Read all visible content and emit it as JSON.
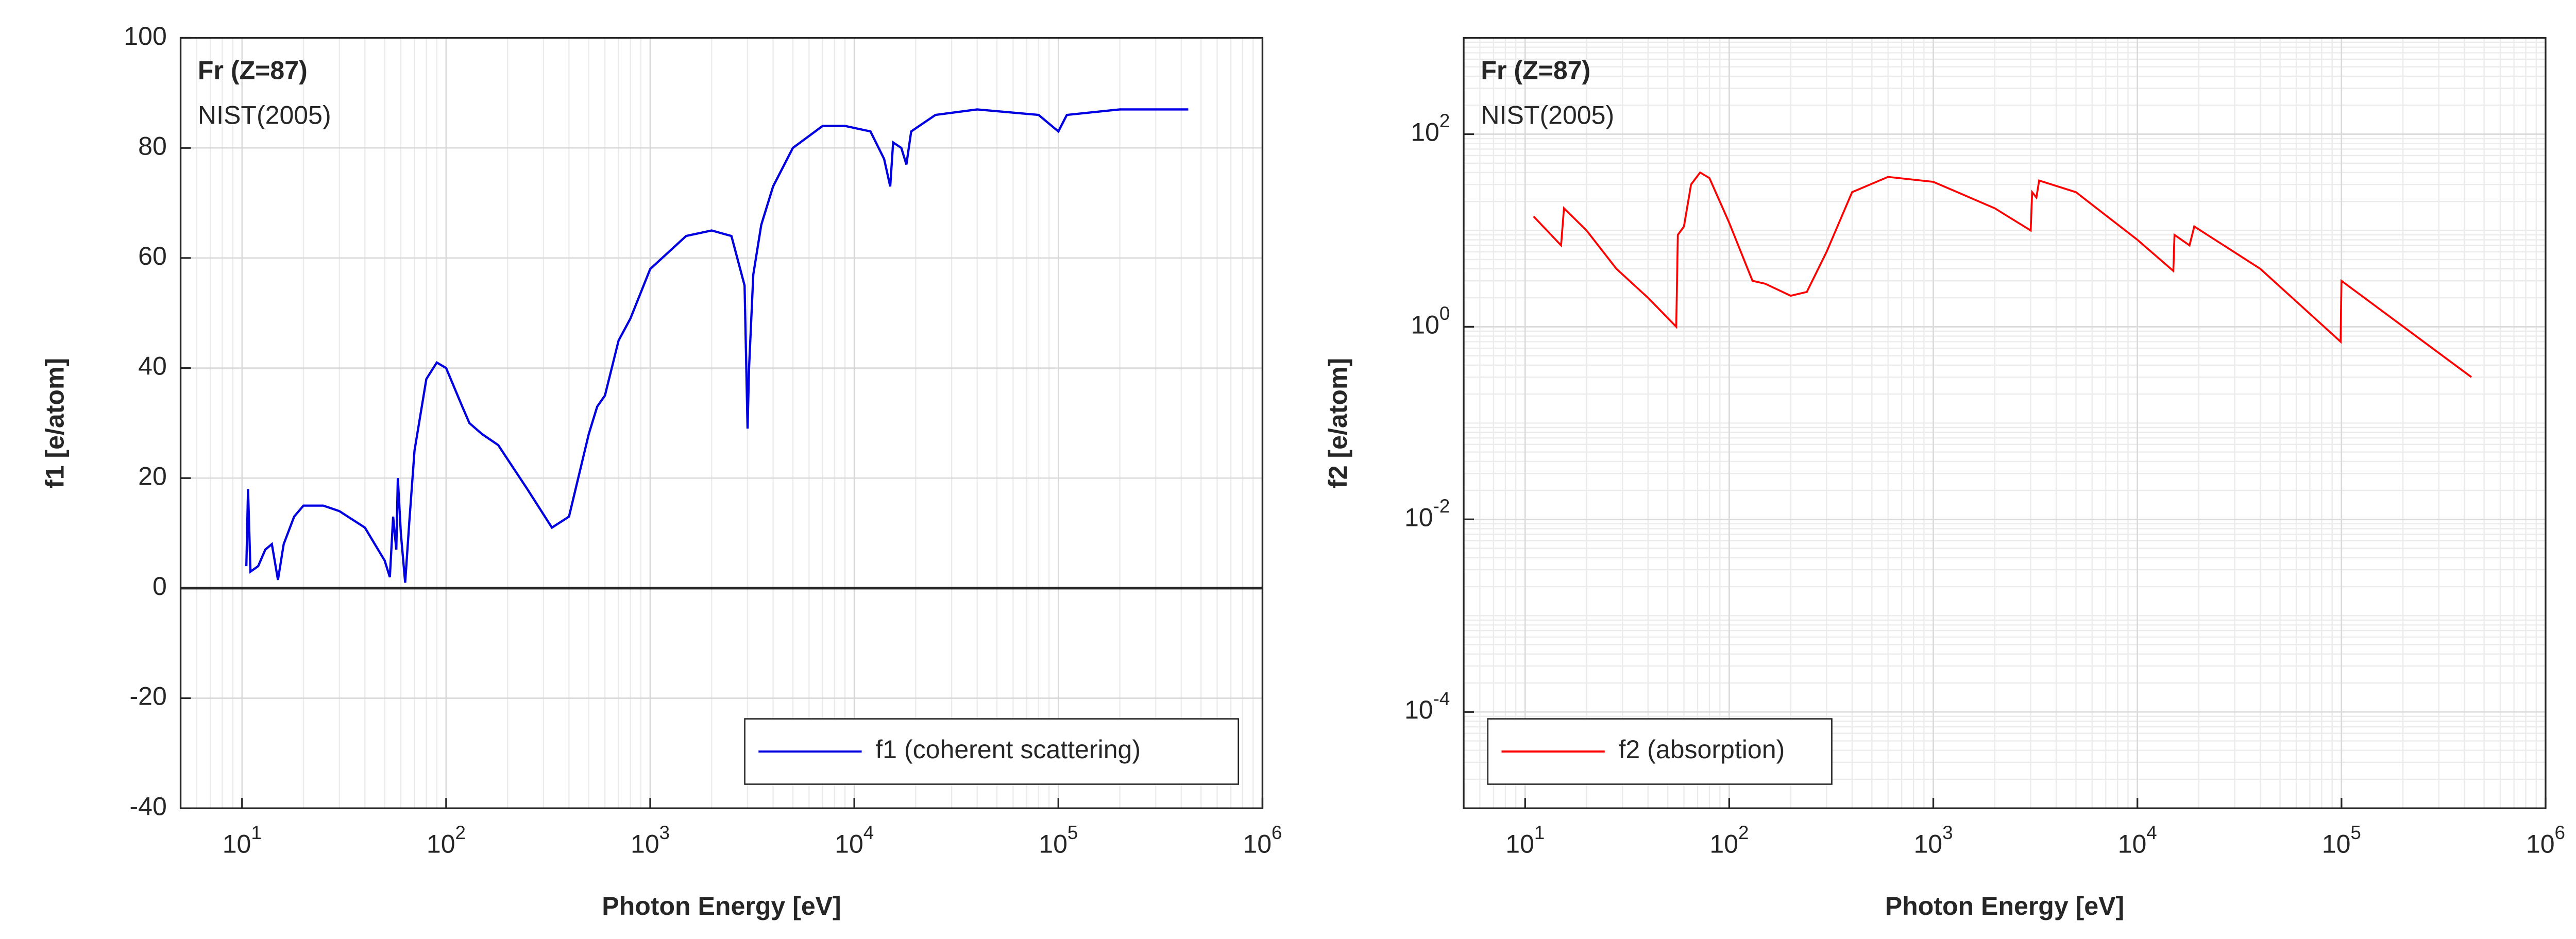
{
  "chart_data": [
    {
      "type": "line",
      "x_log": true,
      "grid": true,
      "minor_grid": true,
      "zero_line": true,
      "legend": "lower right",
      "annotations": [
        "Fr (Z=87)",
        "NIST(2005)"
      ],
      "xlabel": "Photon Energy [eV]",
      "ylabel": "f1 [e/atom]",
      "xlim": [
        5,
        1000000
      ],
      "ylim": [
        -40,
        100
      ],
      "xticks": [
        {
          "value": 10,
          "label": "10",
          "exponent": "1"
        },
        {
          "value": 100,
          "label": "10",
          "exponent": "2"
        },
        {
          "value": 1000,
          "label": "10",
          "exponent": "3"
        },
        {
          "value": 10000,
          "label": "10",
          "exponent": "4"
        },
        {
          "value": 100000,
          "label": "10",
          "exponent": "5"
        },
        {
          "value": 1000000,
          "label": "10",
          "exponent": "6"
        }
      ],
      "yticks": [
        -40,
        -20,
        0,
        20,
        40,
        60,
        80,
        100
      ],
      "series": [
        {
          "name": "f1 (coherent scattering)",
          "color": "#0000e0",
          "x": [
            10.5,
            10.7,
            11,
            12,
            13,
            14,
            15,
            16,
            18,
            20,
            25,
            30,
            40,
            50,
            53,
            55,
            57,
            58,
            60,
            63,
            66,
            70,
            80,
            90,
            100,
            120,
            130,
            150,
            180,
            250,
            330,
            400,
            500,
            550,
            600,
            700,
            800,
            1000,
            1500,
            2000,
            2500,
            2900,
            3000,
            3050,
            3200,
            3500,
            4000,
            5000,
            7000,
            9000,
            12000,
            14000,
            15000,
            15500,
            17000,
            18000,
            19000,
            25000,
            40000,
            80000,
            100000,
            110000,
            200000,
            433000
          ],
          "values": [
            4,
            18,
            3,
            4,
            7,
            8,
            1.5,
            8,
            13,
            15,
            15,
            14,
            11,
            5,
            2,
            13,
            7,
            20,
            10,
            1,
            12,
            25,
            38,
            41,
            40,
            33,
            30,
            28,
            26,
            18,
            11,
            13,
            28,
            33,
            35,
            45,
            49,
            58,
            64,
            65,
            64,
            55,
            29,
            40,
            57,
            66,
            73,
            80,
            84,
            84,
            83,
            78,
            73,
            81,
            80,
            77,
            83,
            86,
            87,
            86,
            83,
            86,
            87,
            87
          ]
        }
      ]
    },
    {
      "type": "line",
      "x_log": true,
      "y_log": true,
      "grid": true,
      "minor_grid": true,
      "legend": "lower left",
      "annotations": [
        "Fr (Z=87)",
        "NIST(2005)"
      ],
      "xlabel": "Photon Energy [eV]",
      "ylabel": "f2 [e/atom]",
      "xlim": [
        5,
        1000000
      ],
      "ylim": [
        1e-05,
        1000
      ],
      "xticks": [
        {
          "value": 10,
          "label": "10",
          "exponent": "1"
        },
        {
          "value": 100,
          "label": "10",
          "exponent": "2"
        },
        {
          "value": 1000,
          "label": "10",
          "exponent": "3"
        },
        {
          "value": 10000,
          "label": "10",
          "exponent": "4"
        },
        {
          "value": 100000,
          "label": "10",
          "exponent": "5"
        },
        {
          "value": 1000000,
          "label": "10",
          "exponent": "6"
        }
      ],
      "yticks": [
        {
          "value": 0.0001,
          "label": "10",
          "exponent": "-4"
        },
        {
          "value": 0.01,
          "label": "10",
          "exponent": "-2"
        },
        {
          "value": 1,
          "label": "10",
          "exponent": "0"
        },
        {
          "value": 100,
          "label": "10",
          "exponent": "2"
        }
      ],
      "series": [
        {
          "name": "f2 (absorption)",
          "color": "#ff0000",
          "x": [
            11,
            15,
            15.5,
            20,
            28,
            40,
            55,
            56,
            60,
            65,
            72,
            80,
            100,
            130,
            150,
            200,
            240,
            300,
            400,
            600,
            1000,
            2000,
            3000,
            3050,
            3200,
            3300,
            5000,
            10000,
            15000,
            15200,
            18000,
            19000,
            40000,
            99000,
            100000,
            433000
          ],
          "values": [
            14,
            7,
            17,
            10,
            4,
            2,
            1,
            9,
            11,
            30,
            40,
            35,
            12,
            3,
            2.8,
            2.1,
            2.3,
            6,
            25,
            36,
            32,
            17,
            10,
            25,
            22,
            33,
            25,
            8,
            3.8,
            9,
            7,
            11,
            4,
            0.7,
            3,
            0.3
          ]
        }
      ]
    }
  ]
}
